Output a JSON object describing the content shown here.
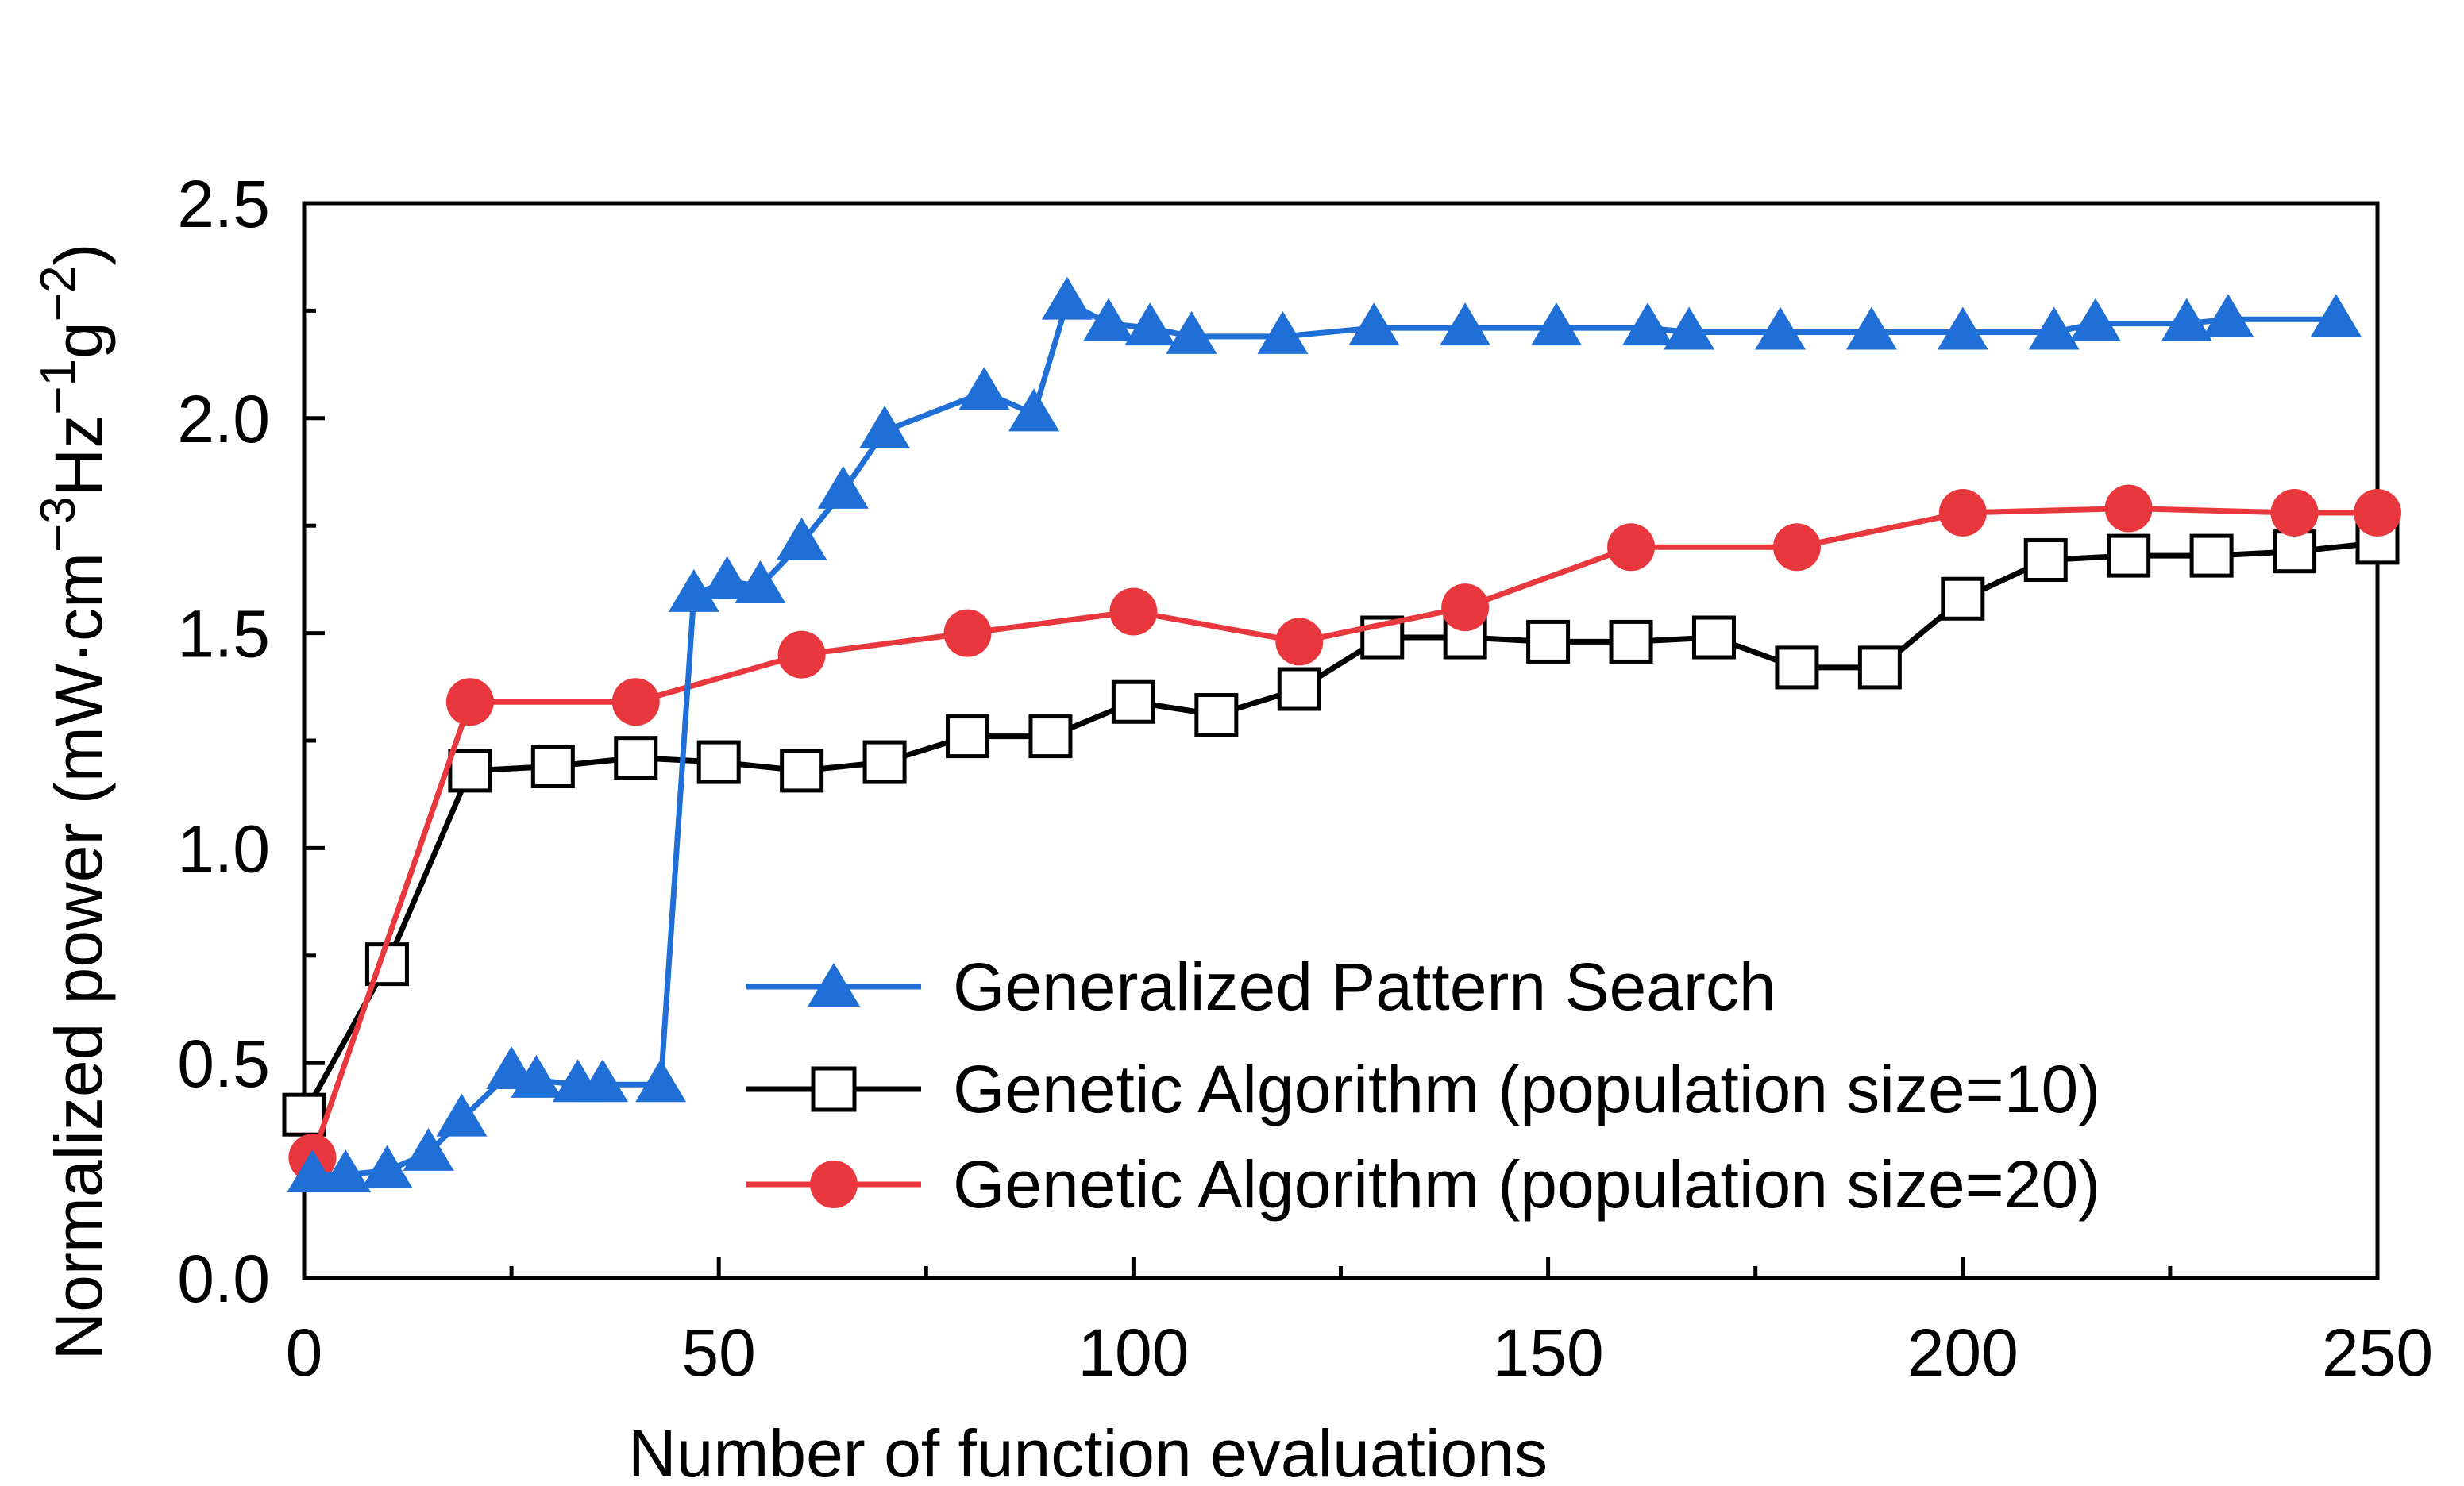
{
  "chart_data": {
    "type": "line",
    "title": "",
    "xlabel": "Number of function evaluations",
    "ylabel_parts": [
      "Normalized power (mW·cm",
      "−3",
      "Hz",
      "−1",
      "g",
      "−2",
      ")"
    ],
    "xlim": [
      0,
      250
    ],
    "ylim": [
      0,
      2.5
    ],
    "x_ticks": [
      0,
      50,
      100,
      150,
      200,
      250
    ],
    "x_tick_labels": [
      "0",
      "50",
      "100",
      "150",
      "200",
      "250"
    ],
    "y_ticks": [
      0,
      0.5,
      1,
      1.5,
      2,
      2.5
    ],
    "y_tick_labels": [
      "0.0",
      "0.5",
      "1.0",
      "1.5",
      "2.0",
      "2.5"
    ],
    "grid": false,
    "legend_position": "bottom-right",
    "series": [
      {
        "name": "Generalized Pattern Search",
        "color": "#1f6fd6",
        "marker": "triangle",
        "x": [
          1,
          5,
          10,
          15,
          19,
          25,
          28,
          33,
          36,
          43,
          47,
          51,
          55,
          60,
          65,
          70,
          82,
          88,
          92,
          97,
          102,
          107,
          118,
          129,
          140,
          151,
          162,
          167,
          178,
          189,
          200,
          211,
          216,
          227,
          232,
          245
        ],
        "y": [
          0.24,
          0.24,
          0.25,
          0.29,
          0.37,
          0.48,
          0.46,
          0.45,
          0.45,
          0.45,
          1.59,
          1.62,
          1.61,
          1.71,
          1.83,
          1.97,
          2.06,
          2.01,
          2.27,
          2.22,
          2.21,
          2.19,
          2.19,
          2.21,
          2.21,
          2.21,
          2.21,
          2.2,
          2.2,
          2.2,
          2.2,
          2.2,
          2.22,
          2.22,
          2.23,
          2.23
        ]
      },
      {
        "name": "Genetic Algorithm (population size=10)",
        "color": "#000000",
        "marker": "open-square",
        "x": [
          0,
          10,
          20,
          30,
          40,
          50,
          60,
          70,
          80,
          90,
          100,
          110,
          120,
          130,
          140,
          150,
          160,
          170,
          180,
          190,
          200,
          210,
          220,
          230,
          240,
          250
        ],
        "y": [
          0.38,
          0.73,
          1.18,
          1.19,
          1.21,
          1.2,
          1.18,
          1.2,
          1.26,
          1.26,
          1.34,
          1.31,
          1.37,
          1.49,
          1.49,
          1.48,
          1.48,
          1.49,
          1.42,
          1.42,
          1.58,
          1.67,
          1.68,
          1.68,
          1.69,
          1.71
        ]
      },
      {
        "name": "Genetic Algorithm (population size=20)",
        "color": "#e8383d",
        "marker": "filled-circle",
        "x": [
          1,
          20,
          40,
          60,
          80,
          100,
          120,
          140,
          160,
          180,
          200,
          220,
          240,
          250
        ],
        "y": [
          0.28,
          1.34,
          1.34,
          1.45,
          1.5,
          1.55,
          1.48,
          1.56,
          1.7,
          1.7,
          1.78,
          1.79,
          1.78,
          1.78
        ]
      }
    ]
  }
}
